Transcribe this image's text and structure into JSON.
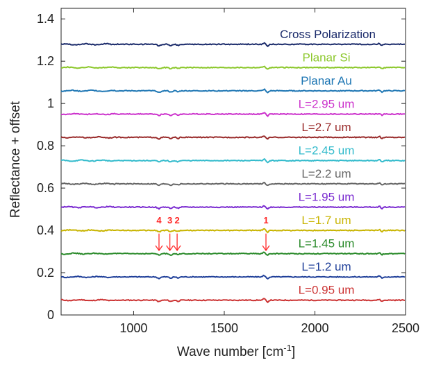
{
  "chart_data": {
    "type": "line",
    "title": "",
    "xlabel": "Wave number [cm",
    "xlabel_sup": "-1",
    "xlabel_suffix": "]",
    "ylabel": "Reflectance + offset",
    "xlim": [
      600,
      2500
    ],
    "ylim": [
      0,
      1.45
    ],
    "xticks": [
      1000,
      1500,
      2000,
      2500
    ],
    "yticks": [
      0,
      0.2,
      0.4,
      0.6,
      0.8,
      1.0,
      1.2,
      1.4
    ],
    "ytick_labels": [
      "0",
      "0.2",
      "0.4",
      "0.6",
      "0.8",
      "1",
      "1.2",
      "1.4"
    ],
    "grid": false,
    "legend": "inline labels above each trace",
    "series": [
      {
        "name": "L=0.95 um",
        "color": "#cc3333",
        "baseline": 0.07
      },
      {
        "name": "L=1.2 um",
        "color": "#1f3f99",
        "baseline": 0.18
      },
      {
        "name": "L=1.45 um",
        "color": "#2a8a2a",
        "baseline": 0.29
      },
      {
        "name": "L=1.7 um",
        "color": "#c8b400",
        "baseline": 0.4
      },
      {
        "name": "L=1.95 um",
        "color": "#7a2ad0",
        "baseline": 0.51
      },
      {
        "name": "L=2.2 um",
        "color": "#666666",
        "baseline": 0.62
      },
      {
        "name": "L=2.45 um",
        "color": "#33bbcc",
        "baseline": 0.73
      },
      {
        "name": "L=2.7 um",
        "color": "#992a2a",
        "baseline": 0.84
      },
      {
        "name": "L=2.95 um",
        "color": "#cc33cc",
        "baseline": 0.95
      },
      {
        "name": "Planar Au",
        "color": "#1f77b4",
        "baseline": 1.06
      },
      {
        "name": "Planar Si",
        "color": "#8bc72a",
        "baseline": 1.17
      },
      {
        "name": "Cross Polarization",
        "color": "#1a2a6a",
        "baseline": 1.28
      }
    ],
    "features": [
      1140,
      1200,
      1240,
      1730,
      2360
    ],
    "annotations": [
      {
        "text": "4",
        "x": 1140
      },
      {
        "text": "3",
        "x": 1200
      },
      {
        "text": "2",
        "x": 1240
      },
      {
        "text": "1",
        "x": 1730
      }
    ],
    "annotation_color": "#ff2a2a"
  }
}
